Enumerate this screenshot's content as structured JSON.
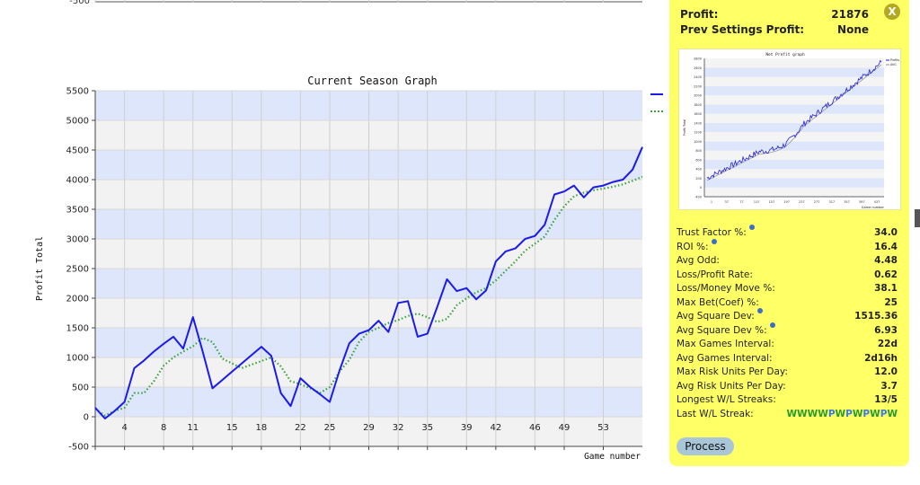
{
  "top_strip_tick": "-500",
  "chart_data": {
    "type": "line",
    "title": "Current Season Graph",
    "xlabel": "Game number",
    "ylabel": "Profit Total",
    "ylim": [
      -500,
      5500
    ],
    "yticks": [
      -500,
      0,
      500,
      1000,
      1500,
      2000,
      2500,
      3000,
      3500,
      4000,
      4500,
      5000,
      5500
    ],
    "xlim": [
      1,
      57
    ],
    "xticks": [
      1,
      4,
      8,
      11,
      15,
      18,
      22,
      25,
      29,
      32,
      35,
      39,
      42,
      46,
      49,
      53
    ],
    "xtick_labels": [
      "",
      "4",
      "8",
      "11",
      "15",
      "18",
      "22",
      "25",
      "29",
      "32",
      "35",
      "39",
      "42",
      "46",
      "49",
      "53"
    ],
    "grid": true,
    "bands": [
      "#dde6fb",
      "#f2f2f2"
    ],
    "series": [
      {
        "color": "#1a1aee",
        "style": "solid",
        "x": [
          1,
          2,
          3,
          4,
          5,
          6,
          7,
          8,
          9,
          10,
          11,
          12,
          13,
          14,
          15,
          16,
          17,
          18,
          19,
          20,
          21,
          22,
          23,
          24,
          25,
          26,
          27,
          28,
          29,
          30,
          31,
          32,
          33,
          34,
          35,
          36,
          37,
          38,
          39,
          40,
          41,
          42,
          43,
          44,
          45,
          46,
          47,
          48,
          49,
          50,
          51,
          52,
          53,
          54,
          55,
          56,
          57
        ],
        "y": [
          150,
          -30,
          100,
          250,
          820,
          950,
          1100,
          1230,
          1350,
          1150,
          1680,
          1100,
          480,
          620,
          760,
          900,
          1040,
          1180,
          1030,
          400,
          180,
          650,
          500,
          380,
          250,
          780,
          1240,
          1400,
          1460,
          1620,
          1430,
          1920,
          1950,
          1350,
          1400,
          1850,
          2320,
          2120,
          2170,
          1980,
          2130,
          2620,
          2790,
          2840,
          3000,
          3050,
          3240,
          3750,
          3800,
          3900,
          3700,
          3870,
          3900,
          3960,
          4000,
          4170,
          4550
        ]
      },
      {
        "color": "#3aa33a",
        "style": "dotted",
        "x": [
          1,
          2,
          3,
          4,
          5,
          6,
          7,
          8,
          9,
          10,
          11,
          12,
          13,
          14,
          15,
          16,
          17,
          18,
          19,
          20,
          21,
          22,
          23,
          24,
          25,
          26,
          27,
          28,
          29,
          30,
          31,
          32,
          33,
          34,
          35,
          36,
          37,
          38,
          39,
          40,
          41,
          42,
          43,
          44,
          45,
          46,
          47,
          48,
          49,
          50,
          51,
          52,
          53,
          54,
          55,
          56,
          57
        ],
        "y": [
          130,
          20,
          100,
          150,
          400,
          400,
          600,
          860,
          1000,
          1100,
          1190,
          1330,
          1260,
          980,
          900,
          820,
          880,
          940,
          1000,
          850,
          600,
          550,
          480,
          400,
          500,
          760,
          960,
          1260,
          1430,
          1500,
          1580,
          1630,
          1700,
          1740,
          1680,
          1600,
          1650,
          1880,
          2000,
          2100,
          2170,
          2300,
          2460,
          2620,
          2800,
          2920,
          3040,
          3320,
          3550,
          3720,
          3780,
          3820,
          3850,
          3880,
          3920,
          3980,
          4050
        ]
      }
    ]
  },
  "panel": {
    "close_label": "X",
    "profit_label": "Profit:",
    "profit_value": "21876",
    "prev_label": "Prev Settings Profit:",
    "prev_value": "None",
    "thumbnail": {
      "title": "Net Profit graph",
      "ylabel": "Profit Total",
      "xlabel": "Game number",
      "yticks": [
        "-400",
        "0",
        "200",
        "400",
        "600",
        "800",
        "1000",
        "1200",
        "1400",
        "1600",
        "1800",
        "2000",
        "2200",
        "2400",
        "2600",
        "2800"
      ],
      "xticks": [
        "1",
        "37",
        "77",
        "117",
        "157",
        "197",
        "237",
        "277",
        "317",
        "357",
        "397",
        "437"
      ],
      "legend": [
        "Profits",
        "AVG"
      ]
    },
    "stats": [
      {
        "label": "Trust Factor %:",
        "value": "34.0",
        "info": true
      },
      {
        "label": "ROI %:",
        "value": "16.4",
        "info": true
      },
      {
        "label": "Avg Odd:",
        "value": "4.48",
        "info": false
      },
      {
        "label": "Loss/Profit Rate:",
        "value": "0.62",
        "info": false
      },
      {
        "label": "Loss/Money Move %:",
        "value": "38.1",
        "info": false
      },
      {
        "label": "Max Bet(Coef) %:",
        "value": "25",
        "info": false
      },
      {
        "label": "Avg Square Dev:",
        "value": "1515.36",
        "info": true
      },
      {
        "label": "Avg Square Dev %:",
        "value": "6.93",
        "info": true
      },
      {
        "label": "Max Games Interval:",
        "value": "22d",
        "info": false
      },
      {
        "label": "Avg Games Interval:",
        "value": "2d16h",
        "info": false
      },
      {
        "label": "Max Risk Units Per Day:",
        "value": "12.0",
        "info": false
      },
      {
        "label": "Avg Risk Units Per Day:",
        "value": "3.7",
        "info": false
      },
      {
        "label": "Longest W/L Streaks:",
        "value": "13/5",
        "info": false
      }
    ],
    "last_streak_label": "Last W/L Streak:",
    "last_streak": "WWWWPWPWPWPW",
    "colors": {
      "W": "#2a9a2a",
      "P": "#3a7ae0"
    },
    "process_label": "Process"
  }
}
